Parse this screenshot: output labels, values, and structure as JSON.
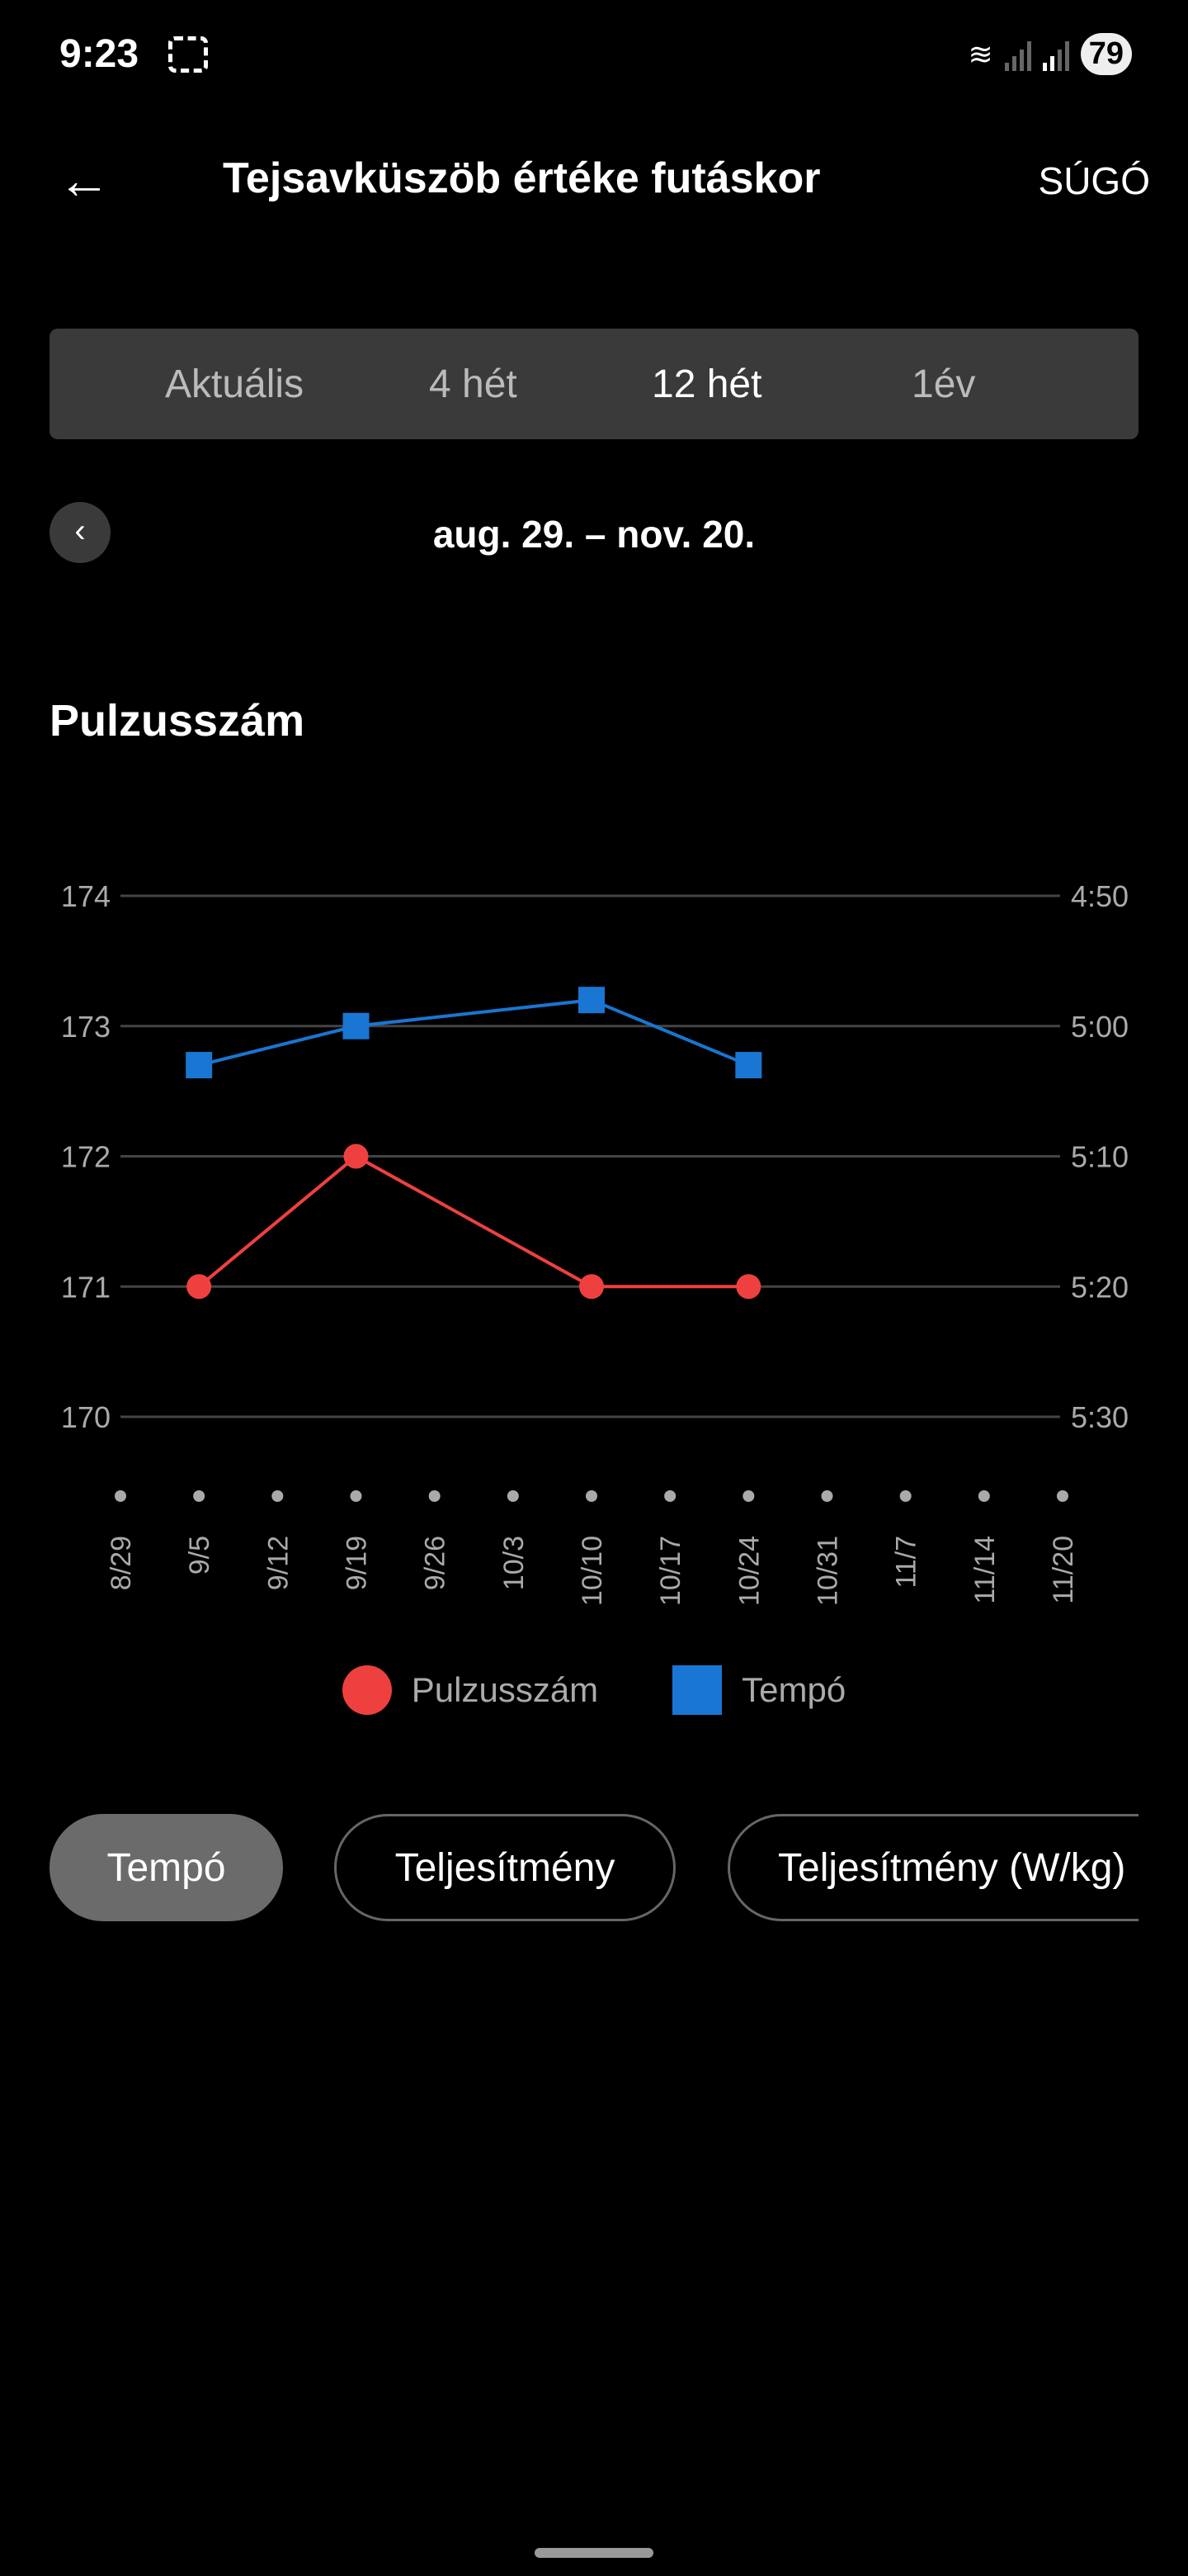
{
  "status": {
    "time": "9:23",
    "battery": "79"
  },
  "header": {
    "title": "Tejsavküszöb értéke futáskor",
    "help": "SÚGÓ"
  },
  "periods": [
    {
      "label": "Aktuális"
    },
    {
      "label": "4 hét"
    },
    {
      "label": "12 hét",
      "active": true
    },
    {
      "label": "1év"
    }
  ],
  "range": "aug. 29. – nov. 20.",
  "section_title": "Pulzusszám",
  "chart_data": {
    "type": "line",
    "x": [
      "8/29",
      "9/5",
      "9/12",
      "9/19",
      "9/26",
      "10/3",
      "10/10",
      "10/17",
      "10/24",
      "10/31",
      "11/7",
      "11/14",
      "11/20"
    ],
    "left_ticks": [
      "174",
      "173",
      "172",
      "171",
      "170"
    ],
    "right_ticks": [
      "4:50",
      "5:00",
      "5:10",
      "5:20",
      "5:30"
    ],
    "ylim": [
      170,
      174
    ],
    "right_ylim_sec": [
      330,
      290
    ],
    "series": [
      {
        "name": "Pulzusszám",
        "color": "#ef4040",
        "marker": "circle",
        "axis": "left",
        "points": [
          [
            "9/5",
            171
          ],
          [
            "9/19",
            172
          ],
          [
            "10/10",
            171
          ],
          [
            "10/24",
            171
          ]
        ]
      },
      {
        "name": "Tempó",
        "color": "#1976d2",
        "marker": "square",
        "axis": "right",
        "points_sec": [
          [
            "9/5",
            303
          ],
          [
            "9/19",
            300
          ],
          [
            "10/10",
            298
          ],
          [
            "10/24",
            303
          ]
        ]
      }
    ],
    "legend": [
      "Pulzusszám",
      "Tempó"
    ],
    "legend_position": "bottom"
  },
  "chips": [
    {
      "label": "Tempó",
      "active": true
    },
    {
      "label": "Teljesítmény"
    },
    {
      "label": "Teljesítmény (W/kg)"
    }
  ]
}
